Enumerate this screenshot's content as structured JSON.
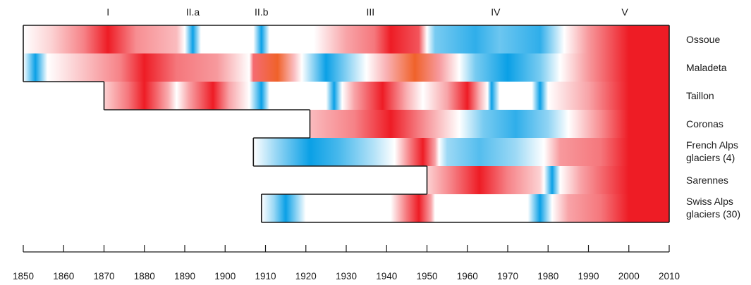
{
  "chart_data": {
    "type": "heatmap",
    "title": "",
    "xlabel": "",
    "ylabel": "",
    "xlim": [
      1850,
      2010
    ],
    "x_ticks": [
      1850,
      1860,
      1870,
      1880,
      1890,
      1900,
      1910,
      1920,
      1930,
      1940,
      1950,
      1960,
      1970,
      1980,
      1990,
      2000,
      2010
    ],
    "colors": {
      "red": "#ee1c25",
      "orange": "#f0622a",
      "blue": "#0aa0e6",
      "white": "#ffffff",
      "outline": "#1a1a1a"
    },
    "periods": [
      {
        "label": "I",
        "year": 1871
      },
      {
        "label": "II.a",
        "year": 1892
      },
      {
        "label": "II.b",
        "year": 1909
      },
      {
        "label": "III",
        "year": 1936
      },
      {
        "label": "IV",
        "year": 1967
      },
      {
        "label": "V",
        "year": 1999
      }
    ],
    "rows": [
      {
        "name": "Ossoue",
        "label_lines": [
          "Ossoue"
        ],
        "start": 1850,
        "end": 2010,
        "stops": [
          [
            1850,
            "w"
          ],
          [
            1857,
            "r20"
          ],
          [
            1865,
            "r55"
          ],
          [
            1871,
            "r100"
          ],
          [
            1878,
            "r50"
          ],
          [
            1888,
            "r30"
          ],
          [
            1890,
            "w"
          ],
          [
            1892,
            "b100"
          ],
          [
            1894,
            "w"
          ],
          [
            1907,
            "w"
          ],
          [
            1909,
            "b100"
          ],
          [
            1911,
            "w"
          ],
          [
            1922,
            "w"
          ],
          [
            1930,
            "r40"
          ],
          [
            1937,
            "r60"
          ],
          [
            1941,
            "r100"
          ],
          [
            1948,
            "r75"
          ],
          [
            1950,
            "w"
          ],
          [
            1952,
            "b55"
          ],
          [
            1962,
            "b85"
          ],
          [
            1968,
            "b60"
          ],
          [
            1978,
            "b85"
          ],
          [
            1984,
            "w"
          ],
          [
            1990,
            "r45"
          ],
          [
            2000,
            "r100"
          ],
          [
            2010,
            "r100"
          ]
        ]
      },
      {
        "name": "Maladeta",
        "label_lines": [
          "Maladeta"
        ],
        "start": 1850,
        "end": 2010,
        "stops": [
          [
            1850,
            "w"
          ],
          [
            1853,
            "b100"
          ],
          [
            1856,
            "w"
          ],
          [
            1866,
            "r30"
          ],
          [
            1874,
            "r55"
          ],
          [
            1880,
            "r100"
          ],
          [
            1888,
            "r60"
          ],
          [
            1898,
            "r45"
          ],
          [
            1906,
            "w"
          ],
          [
            1907,
            "r65"
          ],
          [
            1913,
            "o100"
          ],
          [
            1917,
            "r30"
          ],
          [
            1919,
            "w"
          ],
          [
            1925,
            "b100"
          ],
          [
            1931,
            "b40"
          ],
          [
            1935,
            "w"
          ],
          [
            1940,
            "r35"
          ],
          [
            1947,
            "o100"
          ],
          [
            1953,
            "r45"
          ],
          [
            1958,
            "w"
          ],
          [
            1962,
            "b55"
          ],
          [
            1970,
            "b100"
          ],
          [
            1978,
            "b55"
          ],
          [
            1983,
            "w"
          ],
          [
            1990,
            "r45"
          ],
          [
            2000,
            "r100"
          ],
          [
            2010,
            "r100"
          ]
        ]
      },
      {
        "name": "Taillon",
        "label_lines": [
          "Taillon"
        ],
        "start": 1870,
        "end": 2010,
        "stops": [
          [
            1870,
            "r20"
          ],
          [
            1876,
            "r60"
          ],
          [
            1880,
            "r100"
          ],
          [
            1886,
            "r35"
          ],
          [
            1888,
            "w"
          ],
          [
            1891,
            "r40"
          ],
          [
            1897,
            "r100"
          ],
          [
            1901,
            "r40"
          ],
          [
            1906,
            "w"
          ],
          [
            1909,
            "b100"
          ],
          [
            1911,
            "w"
          ],
          [
            1925,
            "w"
          ],
          [
            1927,
            "b100"
          ],
          [
            1929,
            "w"
          ],
          [
            1932,
            "r40"
          ],
          [
            1939,
            "r100"
          ],
          [
            1945,
            "r35"
          ],
          [
            1949,
            "w"
          ],
          [
            1955,
            "r40"
          ],
          [
            1960,
            "r100"
          ],
          [
            1963,
            "r35"
          ],
          [
            1965,
            "w"
          ],
          [
            1966,
            "b100"
          ],
          [
            1968,
            "w"
          ],
          [
            1976,
            "w"
          ],
          [
            1978,
            "b100"
          ],
          [
            1980,
            "w"
          ],
          [
            1990,
            "r40"
          ],
          [
            2000,
            "r100"
          ],
          [
            2010,
            "r100"
          ]
        ]
      },
      {
        "name": "Coronas",
        "label_lines": [
          "Coronas"
        ],
        "start": 1921,
        "end": 2010,
        "stops": [
          [
            1921,
            "r30"
          ],
          [
            1932,
            "r55"
          ],
          [
            1941,
            "r100"
          ],
          [
            1950,
            "r45"
          ],
          [
            1958,
            "w"
          ],
          [
            1964,
            "b55"
          ],
          [
            1972,
            "b85"
          ],
          [
            1980,
            "b45"
          ],
          [
            1985,
            "w"
          ],
          [
            1993,
            "r50"
          ],
          [
            2000,
            "r100"
          ],
          [
            2010,
            "r100"
          ]
        ]
      },
      {
        "name": "French Alps glaciers (4)",
        "label_lines": [
          "French Alps",
          "glaciers (4)"
        ],
        "start": 1907,
        "end": 2010,
        "stops": [
          [
            1907,
            "w"
          ],
          [
            1913,
            "b45"
          ],
          [
            1921,
            "b100"
          ],
          [
            1928,
            "b75"
          ],
          [
            1937,
            "b30"
          ],
          [
            1942,
            "w"
          ],
          [
            1946,
            "r60"
          ],
          [
            1949,
            "r100"
          ],
          [
            1952,
            "r40"
          ],
          [
            1953,
            "w"
          ],
          [
            1955,
            "b40"
          ],
          [
            1963,
            "b70"
          ],
          [
            1972,
            "b40"
          ],
          [
            1979,
            "w"
          ],
          [
            1983,
            "r45"
          ],
          [
            1993,
            "r60"
          ],
          [
            2000,
            "r100"
          ],
          [
            2010,
            "r100"
          ]
        ]
      },
      {
        "name": "Sarennes",
        "label_lines": [
          "Sarennes"
        ],
        "start": 1950,
        "end": 2010,
        "stops": [
          [
            1950,
            "r20"
          ],
          [
            1956,
            "r55"
          ],
          [
            1963,
            "r100"
          ],
          [
            1970,
            "r55"
          ],
          [
            1978,
            "r20"
          ],
          [
            1979,
            "w"
          ],
          [
            1981,
            "b100"
          ],
          [
            1983,
            "w"
          ],
          [
            1988,
            "r40"
          ],
          [
            2000,
            "r100"
          ],
          [
            2010,
            "r100"
          ]
        ]
      },
      {
        "name": "Swiss Alps glaciers (30)",
        "label_lines": [
          "Swiss Alps",
          "glaciers (30)"
        ],
        "start": 1909,
        "end": 2010,
        "stops": [
          [
            1909,
            "w"
          ],
          [
            1912,
            "b40"
          ],
          [
            1915,
            "b100"
          ],
          [
            1920,
            "w"
          ],
          [
            1941,
            "w"
          ],
          [
            1945,
            "r60"
          ],
          [
            1948,
            "r100"
          ],
          [
            1951,
            "r40"
          ],
          [
            1952,
            "w"
          ],
          [
            1975,
            "w"
          ],
          [
            1978,
            "b100"
          ],
          [
            1981,
            "w"
          ],
          [
            1985,
            "r40"
          ],
          [
            1993,
            "r60"
          ],
          [
            2000,
            "r100"
          ],
          [
            2010,
            "r100"
          ]
        ]
      }
    ]
  }
}
